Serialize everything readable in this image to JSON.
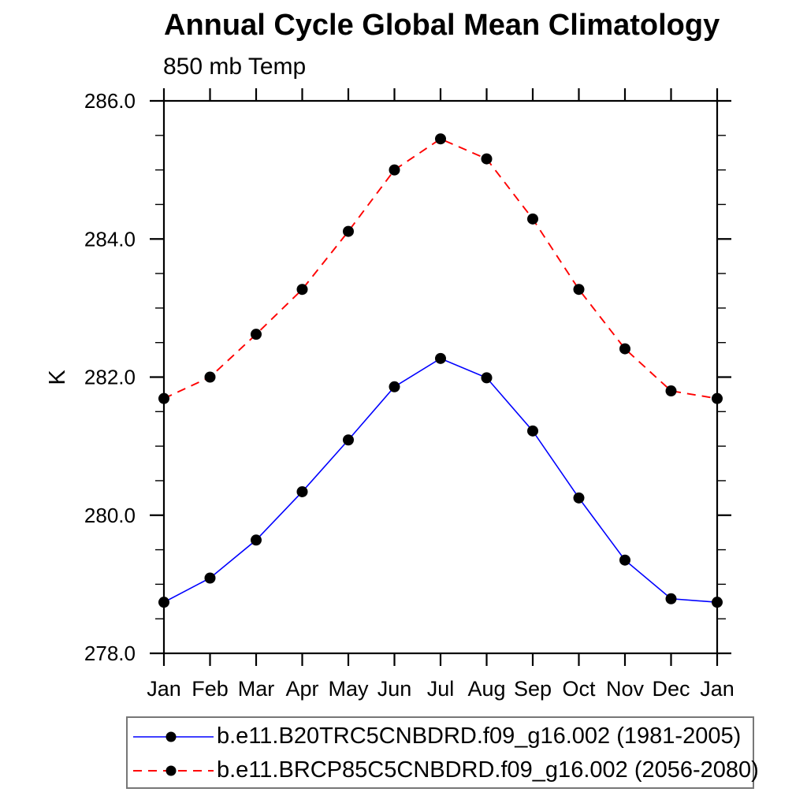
{
  "title": "Annual Cycle Global Mean Climatology",
  "subtitle": "850 mb Temp",
  "chart_data": {
    "type": "line",
    "title": "Annual Cycle Global Mean Climatology",
    "subtitle": "850 mb Temp",
    "xlabel": "",
    "ylabel": "K",
    "x_categories": [
      "Jan",
      "Feb",
      "Mar",
      "Apr",
      "May",
      "Jun",
      "Jul",
      "Aug",
      "Sep",
      "Oct",
      "Nov",
      "Dec",
      "Jan"
    ],
    "ylim": [
      278.0,
      286.0
    ],
    "y_major_ticks": [
      278.0,
      280.0,
      282.0,
      284.0,
      286.0
    ],
    "y_tick_labels": [
      "278.0",
      "280.0",
      "282.0",
      "284.0",
      "286.0"
    ],
    "y_minor_step": 0.5,
    "grid": false,
    "legend_position": "bottom",
    "marker": "filled-circle",
    "marker_color": "#000000",
    "axis_color": "#000000",
    "series": [
      {
        "name": "b.e11.B20TRC5CNBDRD.f09_g16.002 (1981-2005)",
        "color": "#0000ff",
        "line_style": "solid",
        "values": [
          278.74,
          279.09,
          279.64,
          280.34,
          281.09,
          281.86,
          282.27,
          281.99,
          281.22,
          280.25,
          279.35,
          278.79,
          278.74
        ]
      },
      {
        "name": "b.e11.BRCP85C5CNBDRD.f09_g16.002 (2056-2080)",
        "color": "#ff0000",
        "line_style": "dashed",
        "values": [
          281.69,
          282.0,
          282.62,
          283.27,
          284.11,
          285.0,
          285.45,
          285.16,
          284.29,
          283.27,
          282.41,
          281.8,
          281.69
        ]
      }
    ]
  }
}
